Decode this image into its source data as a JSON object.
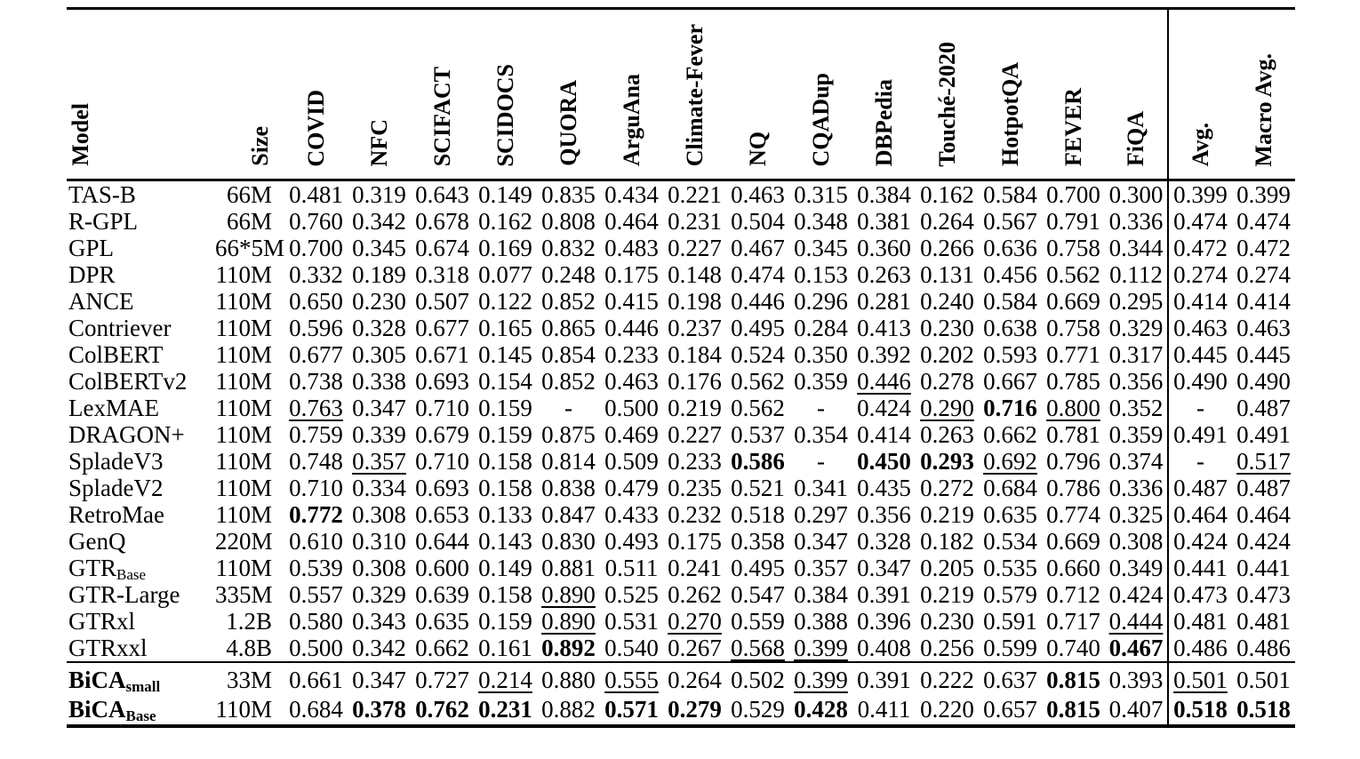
{
  "page": {
    "background_color": "#ffffff",
    "text_color": "#000000",
    "rule_color": "#000000"
  },
  "table": {
    "header": {
      "model_label": "Model",
      "size_label": "Size",
      "datasets": [
        "COVID",
        "NFC",
        "SCIFACT",
        "SCIDOCS",
        "QUORA",
        "ArguAna",
        "Climate-Fever",
        "NQ",
        "CQADup",
        "DBPedia",
        "Touché-2020",
        "HotpotQA",
        "FEVER",
        "FiQA"
      ],
      "aggregates": [
        "Avg.",
        "Macro Avg."
      ]
    },
    "value_style_legend": {
      "b:": "bold (best score)",
      "u:": "underline (second-best score)"
    },
    "rows": [
      {
        "model": {
          "text": "TAS-B",
          "sub": "",
          "bold": false
        },
        "size": "66M",
        "values": [
          "0.481",
          "0.319",
          "0.643",
          "0.149",
          "0.835",
          "0.434",
          "0.221",
          "0.463",
          "0.315",
          "0.384",
          "0.162",
          "0.584",
          "0.700",
          "0.300",
          "0.399",
          "0.399"
        ]
      },
      {
        "model": {
          "text": "R-GPL",
          "sub": "",
          "bold": false
        },
        "size": "66M",
        "values": [
          "0.760",
          "0.342",
          "0.678",
          "0.162",
          "0.808",
          "0.464",
          "0.231",
          "0.504",
          "0.348",
          "0.381",
          "0.264",
          "0.567",
          "0.791",
          "0.336",
          "0.474",
          "0.474"
        ]
      },
      {
        "model": {
          "text": "GPL",
          "sub": "",
          "bold": false
        },
        "size": "66*5M",
        "values": [
          "0.700",
          "0.345",
          "0.674",
          "0.169",
          "0.832",
          "0.483",
          "0.227",
          "0.467",
          "0.345",
          "0.360",
          "0.266",
          "0.636",
          "0.758",
          "0.344",
          "0.472",
          "0.472"
        ]
      },
      {
        "model": {
          "text": "DPR",
          "sub": "",
          "bold": false
        },
        "size": "110M",
        "values": [
          "0.332",
          "0.189",
          "0.318",
          "0.077",
          "0.248",
          "0.175",
          "0.148",
          "0.474",
          "0.153",
          "0.263",
          "0.131",
          "0.456",
          "0.562",
          "0.112",
          "0.274",
          "0.274"
        ]
      },
      {
        "model": {
          "text": "ANCE",
          "sub": "",
          "bold": false
        },
        "size": "110M",
        "values": [
          "0.650",
          "0.230",
          "0.507",
          "0.122",
          "0.852",
          "0.415",
          "0.198",
          "0.446",
          "0.296",
          "0.281",
          "0.240",
          "0.584",
          "0.669",
          "0.295",
          "0.414",
          "0.414"
        ]
      },
      {
        "model": {
          "text": "Contriever",
          "sub": "",
          "bold": false
        },
        "size": "110M",
        "values": [
          "0.596",
          "0.328",
          "0.677",
          "0.165",
          "0.865",
          "0.446",
          "0.237",
          "0.495",
          "0.284",
          "0.413",
          "0.230",
          "0.638",
          "0.758",
          "0.329",
          "0.463",
          "0.463"
        ]
      },
      {
        "model": {
          "text": "ColBERT",
          "sub": "",
          "bold": false
        },
        "size": "110M",
        "values": [
          "0.677",
          "0.305",
          "0.671",
          "0.145",
          "0.854",
          "0.233",
          "0.184",
          "0.524",
          "0.350",
          "0.392",
          "0.202",
          "0.593",
          "0.771",
          "0.317",
          "0.445",
          "0.445"
        ]
      },
      {
        "model": {
          "text": "ColBERTv2",
          "sub": "",
          "bold": false
        },
        "size": "110M",
        "values": [
          "0.738",
          "0.338",
          "0.693",
          "0.154",
          "0.852",
          "0.463",
          "0.176",
          "0.562",
          "0.359",
          "u:0.446",
          "0.278",
          "0.667",
          "0.785",
          "0.356",
          "0.490",
          "0.490"
        ]
      },
      {
        "model": {
          "text": "LexMAE",
          "sub": "",
          "bold": false
        },
        "size": "110M",
        "values": [
          "u:0.763",
          "0.347",
          "0.710",
          "0.159",
          "-",
          "0.500",
          "0.219",
          "0.562",
          "-",
          "0.424",
          "u:0.290",
          "b:0.716",
          "u:0.800",
          "0.352",
          "-",
          "0.487"
        ]
      },
      {
        "model": {
          "text": "DRAGON+",
          "sub": "",
          "bold": false
        },
        "size": "110M",
        "values": [
          "0.759",
          "0.339",
          "0.679",
          "0.159",
          "0.875",
          "0.469",
          "0.227",
          "0.537",
          "0.354",
          "0.414",
          "0.263",
          "0.662",
          "0.781",
          "0.359",
          "0.491",
          "0.491"
        ]
      },
      {
        "model": {
          "text": "SpladeV3",
          "sub": "",
          "bold": false
        },
        "size": "110M",
        "values": [
          "0.748",
          "u:0.357",
          "0.710",
          "0.158",
          "0.814",
          "0.509",
          "0.233",
          "b:0.586",
          "-",
          "b:0.450",
          "b:0.293",
          "u:0.692",
          "0.796",
          "0.374",
          "-",
          "u:0.517"
        ]
      },
      {
        "model": {
          "text": "SpladeV2",
          "sub": "",
          "bold": false
        },
        "size": "110M",
        "values": [
          "0.710",
          "0.334",
          "0.693",
          "0.158",
          "0.838",
          "0.479",
          "0.235",
          "0.521",
          "0.341",
          "0.435",
          "0.272",
          "0.684",
          "0.786",
          "0.336",
          "0.487",
          "0.487"
        ]
      },
      {
        "model": {
          "text": "RetroMae",
          "sub": "",
          "bold": false
        },
        "size": "110M",
        "values": [
          "b:0.772",
          "0.308",
          "0.653",
          "0.133",
          "0.847",
          "0.433",
          "0.232",
          "0.518",
          "0.297",
          "0.356",
          "0.219",
          "0.635",
          "0.774",
          "0.325",
          "0.464",
          "0.464"
        ]
      },
      {
        "model": {
          "text": "GenQ",
          "sub": "",
          "bold": false
        },
        "size": "220M",
        "values": [
          "0.610",
          "0.310",
          "0.644",
          "0.143",
          "0.830",
          "0.493",
          "0.175",
          "0.358",
          "0.347",
          "0.328",
          "0.182",
          "0.534",
          "0.669",
          "0.308",
          "0.424",
          "0.424"
        ]
      },
      {
        "model": {
          "text": "GTR",
          "sub": "Base",
          "bold": false
        },
        "size": "110M",
        "values": [
          "0.539",
          "0.308",
          "0.600",
          "0.149",
          "0.881",
          "0.511",
          "0.241",
          "0.495",
          "0.357",
          "0.347",
          "0.205",
          "0.535",
          "0.660",
          "0.349",
          "0.441",
          "0.441"
        ]
      },
      {
        "model": {
          "text": "GTR-Large",
          "sub": "",
          "bold": false
        },
        "size": "335M",
        "values": [
          "0.557",
          "0.329",
          "0.639",
          "0.158",
          "u:0.890",
          "0.525",
          "0.262",
          "0.547",
          "0.384",
          "0.391",
          "0.219",
          "0.579",
          "0.712",
          "0.424",
          "0.473",
          "0.473"
        ]
      },
      {
        "model": {
          "text": "GTRxl",
          "sub": "",
          "bold": false
        },
        "size": "1.2B",
        "values": [
          "0.580",
          "0.343",
          "0.635",
          "0.159",
          "u:0.890",
          "0.531",
          "u:0.270",
          "0.559",
          "0.388",
          "0.396",
          "0.230",
          "0.591",
          "0.717",
          "u:0.444",
          "0.481",
          "0.481"
        ]
      },
      {
        "model": {
          "text": "GTRxxl",
          "sub": "",
          "bold": false
        },
        "size": "4.8B",
        "values": [
          "0.500",
          "0.342",
          "0.662",
          "0.161",
          "b:0.892",
          "0.540",
          "0.267",
          "u:0.568",
          "u:0.399",
          "0.408",
          "0.256",
          "0.599",
          "0.740",
          "b:0.467",
          "0.486",
          "0.486"
        ]
      }
    ],
    "footer_rows": [
      {
        "model": {
          "text": "BiCA",
          "sub": "small",
          "bold": true
        },
        "size": "33M",
        "values": [
          "0.661",
          "0.347",
          "0.727",
          "u:0.214",
          "0.880",
          "u:0.555",
          "0.264",
          "0.502",
          "u:0.399",
          "0.391",
          "0.222",
          "0.637",
          "b:0.815",
          "0.393",
          "u:0.501",
          "0.501"
        ]
      },
      {
        "model": {
          "text": "BiCA",
          "sub": "Base",
          "bold": true
        },
        "size": "110M",
        "values": [
          "0.684",
          "b:0.378",
          "b:0.762",
          "b:0.231",
          "0.882",
          "b:0.571",
          "b:0.279",
          "0.529",
          "b:0.428",
          "0.411",
          "0.220",
          "0.657",
          "b:0.815",
          "0.407",
          "b:0.518",
          "b:0.518"
        ]
      }
    ]
  }
}
